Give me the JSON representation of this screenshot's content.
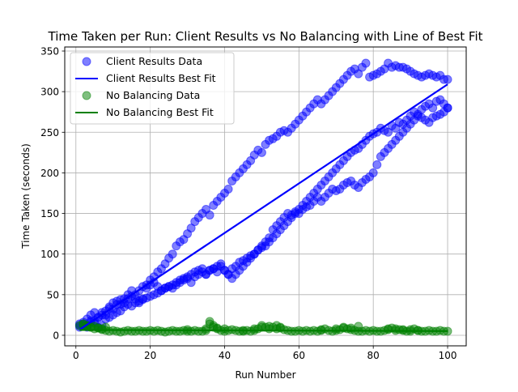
{
  "chart_data": {
    "type": "scatter",
    "title": "Time Taken per Run: Client Results vs No Balancing with Line of Best Fit",
    "xlabel": "Run Number",
    "ylabel": "Time Taken (seconds)",
    "xlim": [
      -3,
      105
    ],
    "ylim": [
      -13,
      355
    ],
    "x_ticks": [
      0,
      20,
      40,
      60,
      80,
      100
    ],
    "y_ticks": [
      0,
      50,
      100,
      150,
      200,
      250,
      300,
      350
    ],
    "grid": true,
    "legend_position": "top-left",
    "series": [
      {
        "name": "Client Results Data",
        "kind": "scatter",
        "color": "#0000ff",
        "opacity": 0.5,
        "x": [
          1,
          2,
          3,
          4,
          5,
          6,
          7,
          8,
          9,
          10,
          11,
          12,
          13,
          14,
          15,
          16,
          17,
          18,
          19,
          20,
          21,
          22,
          23,
          24,
          25,
          26,
          27,
          28,
          29,
          30,
          31,
          32,
          33,
          34,
          35,
          36,
          37,
          38,
          39,
          40,
          41,
          42,
          43,
          44,
          45,
          46,
          47,
          48,
          49,
          50,
          51,
          52,
          53,
          54,
          55,
          56,
          57,
          58,
          59,
          60,
          61,
          62,
          63,
          64,
          65,
          66,
          67,
          68,
          69,
          70,
          71,
          72,
          73,
          74,
          75,
          76,
          77,
          78,
          79,
          80,
          81,
          82,
          83,
          84,
          85,
          86,
          87,
          88,
          89,
          90,
          91,
          92,
          93,
          94,
          95,
          96,
          97,
          98,
          99,
          100,
          1,
          2,
          3,
          4,
          5,
          6,
          7,
          8,
          9,
          10,
          11,
          12,
          13,
          14,
          15,
          16,
          17,
          18,
          19,
          20,
          21,
          22,
          23,
          24,
          25,
          26,
          27,
          28,
          29,
          30,
          31,
          32,
          33,
          34,
          35,
          36,
          37,
          38,
          39,
          40,
          41,
          42,
          43,
          44,
          45,
          46,
          47,
          48,
          49,
          50,
          51,
          52,
          53,
          54,
          55,
          56,
          57,
          58,
          59,
          60,
          61,
          62,
          63,
          64,
          65,
          66,
          67,
          68,
          69,
          70,
          71,
          72,
          73,
          74,
          75,
          76,
          77,
          78,
          79,
          80,
          81,
          82,
          83,
          84,
          85,
          86,
          87,
          88,
          89,
          90,
          91,
          92,
          93,
          94,
          95,
          96,
          97,
          98,
          99,
          100,
          1,
          2,
          3,
          4,
          5,
          6,
          7,
          8,
          9,
          10,
          11,
          12,
          13,
          14,
          15,
          16,
          17,
          18,
          19,
          20,
          21,
          22,
          23,
          24,
          25,
          26,
          27,
          28,
          29,
          30,
          31,
          32,
          33,
          34,
          35,
          36,
          37,
          38,
          39,
          40,
          41,
          42,
          43,
          44,
          45,
          46,
          47,
          48,
          49,
          50,
          51,
          52,
          53,
          54,
          55,
          56,
          57,
          58,
          59,
          60,
          61,
          62,
          63,
          64,
          65,
          66,
          67,
          68,
          69,
          70,
          71,
          72,
          73,
          74,
          75,
          76,
          77,
          78,
          79,
          80,
          81,
          82,
          83,
          84,
          85,
          86,
          87,
          88,
          89,
          90,
          91,
          92,
          93,
          94,
          95,
          96,
          97,
          98,
          99,
          100
        ],
        "y": [
          12,
          16,
          20,
          25,
          28,
          10,
          12,
          25,
          33,
          40,
          42,
          38,
          45,
          50,
          55,
          45,
          40,
          45,
          62,
          68,
          72,
          78,
          82,
          88,
          95,
          100,
          110,
          115,
          118,
          125,
          132,
          140,
          145,
          150,
          155,
          148,
          160,
          165,
          170,
          175,
          180,
          190,
          195,
          200,
          205,
          210,
          215,
          222,
          228,
          225,
          235,
          240,
          242,
          245,
          250,
          252,
          250,
          255,
          260,
          265,
          270,
          275,
          280,
          285,
          290,
          285,
          290,
          295,
          300,
          305,
          310,
          315,
          320,
          325,
          328,
          322,
          330,
          335,
          318,
          320,
          322,
          325,
          328,
          335,
          330,
          332,
          330,
          330,
          328,
          325,
          322,
          320,
          318,
          320,
          322,
          320,
          318,
          320,
          315,
          315,
          14,
          12,
          10,
          18,
          15,
          22,
          25,
          20,
          22,
          25,
          28,
          30,
          35,
          38,
          36,
          40,
          42,
          44,
          46,
          48,
          50,
          52,
          55,
          58,
          60,
          58,
          62,
          65,
          68,
          70,
          65,
          72,
          75,
          78,
          75,
          80,
          82,
          78,
          85,
          80,
          75,
          82,
          85,
          90,
          92,
          95,
          98,
          100,
          105,
          108,
          110,
          115,
          120,
          125,
          130,
          135,
          140,
          145,
          150,
          155,
          160,
          165,
          170,
          175,
          180,
          185,
          190,
          195,
          200,
          205,
          210,
          215,
          220,
          225,
          228,
          230,
          235,
          240,
          245,
          248,
          250,
          255,
          252,
          250,
          258,
          255,
          262,
          260,
          265,
          270,
          275,
          272,
          278,
          282,
          285,
          280,
          288,
          290,
          285,
          280,
          10,
          14,
          12,
          16,
          18,
          22,
          28,
          30,
          35,
          32,
          38,
          44,
          40,
          45,
          48,
          50,
          55,
          60,
          58,
          62,
          65,
          60,
          55,
          58,
          60,
          62,
          65,
          68,
          70,
          72,
          75,
          78,
          80,
          82,
          75,
          80,
          82,
          85,
          88,
          80,
          75,
          70,
          75,
          80,
          85,
          90,
          95,
          100,
          105,
          110,
          115,
          120,
          130,
          135,
          140,
          145,
          150,
          148,
          152,
          150,
          155,
          158,
          160,
          165,
          170,
          165,
          170,
          175,
          180,
          178,
          180,
          185,
          188,
          190,
          185,
          182,
          188,
          192,
          195,
          200,
          210,
          220,
          225,
          230,
          235,
          240,
          245,
          250,
          255,
          260,
          265,
          270,
          268,
          265,
          262,
          268,
          270,
          272,
          275,
          280
        ]
      },
      {
        "name": "Client Results Best Fit",
        "kind": "line",
        "color": "#0000ff",
        "x": [
          1,
          100
        ],
        "y": [
          7,
          309
        ]
      },
      {
        "name": "No Balancing Data",
        "kind": "scatter",
        "color": "#008000",
        "opacity": 0.5,
        "x": [
          1,
          2,
          3,
          4,
          5,
          6,
          7,
          8,
          9,
          10,
          11,
          12,
          13,
          14,
          15,
          16,
          17,
          18,
          19,
          20,
          21,
          22,
          23,
          24,
          25,
          26,
          27,
          28,
          29,
          30,
          31,
          32,
          33,
          34,
          35,
          36,
          37,
          38,
          39,
          40,
          41,
          42,
          43,
          44,
          45,
          46,
          47,
          48,
          49,
          50,
          51,
          52,
          53,
          54,
          55,
          56,
          57,
          58,
          59,
          60,
          61,
          62,
          63,
          64,
          65,
          66,
          67,
          68,
          69,
          70,
          71,
          72,
          73,
          74,
          75,
          76,
          77,
          78,
          79,
          80,
          81,
          82,
          83,
          84,
          85,
          86,
          87,
          88,
          89,
          90,
          91,
          92,
          93,
          94,
          95,
          96,
          97,
          98,
          99,
          100,
          2,
          3,
          4,
          5,
          6,
          7,
          8,
          30,
          35,
          36,
          37,
          38,
          40,
          45,
          48,
          50,
          52,
          54,
          55,
          66,
          70,
          72,
          74,
          76,
          84,
          86,
          88,
          90,
          92
        ],
        "y": [
          12,
          13,
          11,
          10,
          8,
          9,
          7,
          6,
          5,
          6,
          5,
          4,
          5,
          6,
          5,
          5,
          6,
          5,
          5,
          6,
          5,
          6,
          5,
          4,
          5,
          6,
          5,
          5,
          6,
          5,
          5,
          6,
          5,
          5,
          6,
          17,
          12,
          8,
          6,
          5,
          6,
          7,
          6,
          5,
          5,
          6,
          5,
          6,
          8,
          12,
          10,
          8,
          10,
          12,
          9,
          7,
          6,
          5,
          5,
          6,
          5,
          6,
          5,
          6,
          5,
          6,
          8,
          6,
          5,
          6,
          7,
          9,
          8,
          7,
          6,
          5,
          5,
          6,
          5,
          6,
          5,
          5,
          6,
          7,
          9,
          8,
          7,
          6,
          5,
          5,
          8,
          6,
          5,
          5,
          6,
          5,
          5,
          6,
          5,
          5,
          14,
          12,
          10,
          11,
          9,
          8,
          10,
          7,
          8,
          14,
          10,
          9,
          8,
          6,
          8,
          10,
          11,
          8,
          10,
          7,
          8,
          10,
          9,
          11,
          8,
          6,
          7,
          7,
          6
        ]
      },
      {
        "name": "No Balancing Best Fit",
        "kind": "line",
        "color": "#008000",
        "x": [
          1,
          100
        ],
        "y": [
          6.5,
          5.2
        ]
      }
    ]
  }
}
